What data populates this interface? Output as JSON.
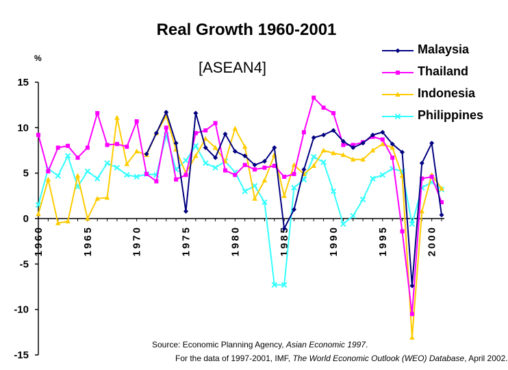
{
  "chart_data": {
    "type": "line",
    "title": "Real Growth 1960-2001",
    "subtitle": "[ASEAN4]",
    "ylabel": "%",
    "xlabel": "",
    "ylim": [
      -15,
      15
    ],
    "yticks": [
      15,
      10,
      5,
      0,
      -5,
      -10,
      -15
    ],
    "ytick_labels": [
      "15",
      "10",
      "5",
      "0",
      "-5",
      "-10",
      "-15"
    ],
    "xlim": [
      1960,
      2001
    ],
    "xticks": [
      1960,
      1965,
      1970,
      1975,
      1980,
      1985,
      1990,
      1995,
      2000
    ],
    "xtick_labels": [
      "1960",
      "1965",
      "1970",
      "1975",
      "1980",
      "1985",
      "1990",
      "1995",
      "2000"
    ],
    "x": [
      1960,
      1961,
      1962,
      1963,
      1964,
      1965,
      1966,
      1967,
      1968,
      1969,
      1970,
      1971,
      1972,
      1973,
      1974,
      1975,
      1976,
      1977,
      1978,
      1979,
      1980,
      1981,
      1982,
      1983,
      1984,
      1985,
      1986,
      1987,
      1988,
      1989,
      1990,
      1991,
      1992,
      1993,
      1994,
      1995,
      1996,
      1997,
      1998,
      1999,
      2000,
      2001
    ],
    "legend_position": "top-right",
    "series": [
      {
        "name": "Malaysia",
        "color": "#000080",
        "marker": "diamond",
        "values": [
          null,
          null,
          null,
          null,
          null,
          null,
          null,
          null,
          null,
          null,
          null,
          7.1,
          9.4,
          11.7,
          8.3,
          0.8,
          11.6,
          7.8,
          6.7,
          9.3,
          7.4,
          6.9,
          5.9,
          6.3,
          7.8,
          -1.1,
          1.0,
          5.4,
          8.9,
          9.2,
          9.7,
          8.5,
          7.8,
          8.3,
          9.2,
          9.5,
          8.2,
          7.3,
          -7.4,
          6.1,
          8.3,
          0.4
        ]
      },
      {
        "name": "Thailand",
        "color": "#ff00ff",
        "marker": "square",
        "values": [
          9.2,
          5.2,
          7.8,
          8.0,
          6.7,
          7.8,
          11.6,
          8.1,
          8.2,
          7.9,
          10.7,
          4.9,
          4.1,
          10.0,
          4.3,
          4.8,
          9.4,
          9.7,
          10.5,
          5.3,
          4.8,
          5.9,
          5.4,
          5.6,
          5.8,
          4.6,
          4.9,
          9.5,
          13.3,
          12.2,
          11.6,
          8.1,
          8.1,
          8.4,
          9.0,
          8.7,
          6.7,
          -1.4,
          -10.5,
          4.4,
          4.6,
          1.8
        ]
      },
      {
        "name": "Indonesia",
        "color": "#ffcc00",
        "marker": "triangle",
        "values": [
          0.5,
          4.3,
          -0.5,
          -0.3,
          4.7,
          0.0,
          2.2,
          2.3,
          11.1,
          6.0,
          7.4,
          7.0,
          9.4,
          11.3,
          7.6,
          5.0,
          6.9,
          8.8,
          7.8,
          6.3,
          9.9,
          7.9,
          2.2,
          4.2,
          7.0,
          2.5,
          5.9,
          4.9,
          5.8,
          7.5,
          7.2,
          7.0,
          6.5,
          6.5,
          7.5,
          8.2,
          7.8,
          4.7,
          -13.1,
          0.8,
          4.8,
          3.3
        ]
      },
      {
        "name": "Philippines",
        "color": "#33ffff",
        "marker": "x",
        "values": [
          1.5,
          5.5,
          4.7,
          6.9,
          3.5,
          5.2,
          4.4,
          6.1,
          5.6,
          4.8,
          4.6,
          4.9,
          4.8,
          9.2,
          5.4,
          6.4,
          8.0,
          6.1,
          5.6,
          6.3,
          5.1,
          3.0,
          3.6,
          1.8,
          -7.3,
          -7.3,
          3.4,
          4.3,
          6.8,
          6.2,
          3.0,
          -0.6,
          0.3,
          2.1,
          4.4,
          4.8,
          5.5,
          5.2,
          -0.6,
          3.4,
          4.0,
          3.2
        ]
      }
    ]
  },
  "source": {
    "line1_prefix": "Source: Economic Planning Agency, ",
    "line1_italic": "Asian Economic 1997",
    "line1_suffix": ".",
    "line2_prefix": "For the data of 1997-2001, IMF, ",
    "line2_italic": "The World Economic Outlook (WEO) Database",
    "line2_suffix": ", April 2002."
  }
}
